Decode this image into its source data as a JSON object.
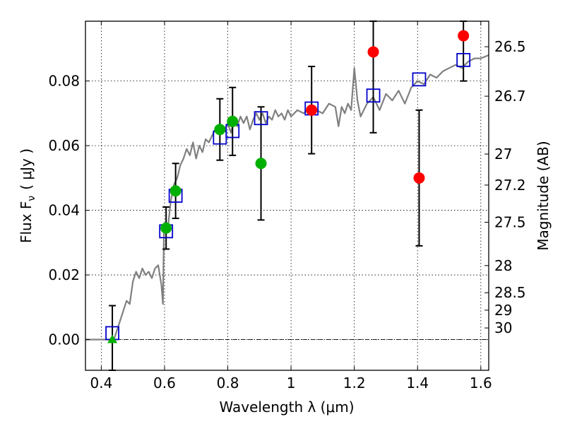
{
  "chart_data": {
    "type": "scatter",
    "xlabel": "Wavelength  λ (μm)",
    "ylabel": "Flux  F",
    "ylabel_sub": "ν",
    "ylabel_unit": "( μJy )",
    "y2label": "Magnitude (AB)",
    "xlim": [
      0.35,
      1.625
    ],
    "ylim": [
      -0.0095,
      0.0985
    ],
    "x_ticks": [
      0.4,
      0.6,
      0.8,
      1.0,
      1.2,
      1.4,
      1.6
    ],
    "x_tick_labels": [
      "0.4",
      "0.6",
      "0.8",
      "1",
      "1.2",
      "1.4",
      "1.6"
    ],
    "y_ticks": [
      0.0,
      0.02,
      0.04,
      0.06,
      0.08
    ],
    "y_tick_labels": [
      "0.00",
      "0.02",
      "0.04",
      "0.06",
      "0.08"
    ],
    "magnitude_ticks": [
      {
        "label": "26.5",
        "flux": 0.0906
      },
      {
        "label": "26.7",
        "flux": 0.0753
      },
      {
        "label": "27",
        "flux": 0.0574
      },
      {
        "label": "27.2",
        "flux": 0.0478
      },
      {
        "label": "27.5",
        "flux": 0.0363
      },
      {
        "label": "28",
        "flux": 0.0229
      },
      {
        "label": "28.5",
        "flux": 0.0145
      },
      {
        "label": "29",
        "flux": 0.0091
      },
      {
        "label": "30",
        "flux": 0.0036
      }
    ],
    "grid": true,
    "series": [
      {
        "marker": "line",
        "color": "#808080",
        "x": [
          0.35,
          0.4,
          0.44,
          0.45,
          0.46,
          0.47,
          0.48,
          0.49,
          0.5,
          0.51,
          0.52,
          0.53,
          0.54,
          0.55,
          0.56,
          0.57,
          0.58,
          0.59,
          0.595,
          0.598,
          0.602,
          0.61,
          0.62,
          0.63,
          0.64,
          0.65,
          0.66,
          0.67,
          0.68,
          0.69,
          0.7,
          0.71,
          0.72,
          0.73,
          0.74,
          0.75,
          0.76,
          0.77,
          0.78,
          0.79,
          0.8,
          0.81,
          0.82,
          0.83,
          0.84,
          0.85,
          0.86,
          0.87,
          0.88,
          0.89,
          0.9,
          0.91,
          0.92,
          0.93,
          0.94,
          0.95,
          0.96,
          0.97,
          0.98,
          0.99,
          1.0,
          1.02,
          1.04,
          1.06,
          1.08,
          1.1,
          1.12,
          1.14,
          1.15,
          1.16,
          1.17,
          1.18,
          1.19,
          1.2,
          1.21,
          1.22,
          1.24,
          1.26,
          1.28,
          1.3,
          1.32,
          1.34,
          1.36,
          1.38,
          1.4,
          1.42,
          1.44,
          1.46,
          1.48,
          1.5,
          1.52,
          1.54,
          1.56,
          1.58,
          1.6,
          1.625
        ],
        "y": [
          0.0,
          0.0,
          0.0,
          0.003,
          0.006,
          0.009,
          0.012,
          0.011,
          0.018,
          0.021,
          0.019,
          0.022,
          0.02,
          0.021,
          0.019,
          0.022,
          0.023,
          0.017,
          0.011,
          0.033,
          0.036,
          0.034,
          0.043,
          0.048,
          0.05,
          0.054,
          0.056,
          0.059,
          0.057,
          0.061,
          0.056,
          0.06,
          0.058,
          0.062,
          0.061,
          0.063,
          0.065,
          0.064,
          0.066,
          0.065,
          0.067,
          0.064,
          0.068,
          0.066,
          0.069,
          0.067,
          0.069,
          0.065,
          0.068,
          0.07,
          0.068,
          0.07,
          0.067,
          0.069,
          0.068,
          0.071,
          0.069,
          0.07,
          0.068,
          0.071,
          0.069,
          0.071,
          0.07,
          0.072,
          0.071,
          0.07,
          0.073,
          0.072,
          0.066,
          0.072,
          0.07,
          0.073,
          0.071,
          0.084,
          0.074,
          0.069,
          0.073,
          0.075,
          0.071,
          0.076,
          0.074,
          0.077,
          0.073,
          0.078,
          0.08,
          0.079,
          0.082,
          0.081,
          0.083,
          0.084,
          0.085,
          0.084,
          0.086,
          0.087,
          0.087,
          0.088
        ]
      },
      {
        "marker": "square",
        "color": "#0000cc",
        "x": [
          0.435,
          0.605,
          0.635,
          0.775,
          0.815,
          0.905,
          1.065,
          1.26,
          1.405,
          1.545
        ],
        "y": [
          0.002,
          0.0335,
          0.0445,
          0.0625,
          0.0645,
          0.0685,
          0.0715,
          0.0755,
          0.0805,
          0.0865
        ]
      },
      {
        "marker": "circle",
        "color": "#00b000",
        "x": [
          0.605,
          0.635,
          0.775,
          0.815,
          0.905
        ],
        "y": [
          0.0345,
          0.046,
          0.065,
          0.0675,
          0.0545
        ],
        "err": [
          0.0065,
          0.0085,
          0.0095,
          0.0105,
          0.0175
        ]
      },
      {
        "marker": "triangle",
        "color": "#00b000",
        "x": [
          0.435
        ],
        "y": [
          0.0
        ],
        "err": [
          0.0105
        ]
      },
      {
        "marker": "circle",
        "color": "#ff0000",
        "x": [
          1.065,
          1.26,
          1.405,
          1.545
        ],
        "y": [
          0.071,
          0.089,
          0.05,
          0.094
        ],
        "err": [
          0.0135,
          0.025,
          0.021,
          0.014
        ]
      }
    ]
  }
}
